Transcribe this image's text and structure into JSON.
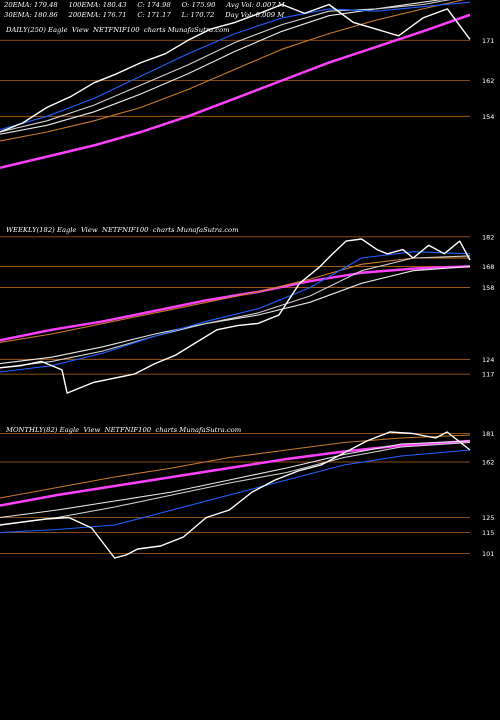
{
  "colors": {
    "background": "#000000",
    "price": "#ffffff",
    "ema20": "#1f5fff",
    "ema30": "#d0d0d0",
    "ema50": "#e8e8e8",
    "ema100": "#c87a2a",
    "ema200": "#ff40ff",
    "gridline": "#b5651d"
  },
  "header": {
    "row1": "20EMA: 179.48     100EMA: 180.43     C: 174.98     O: 175.90     Avg Vol: 0.007 M",
    "row2": "30EMA: 180.86     200EMA: 176.71     C: 171.17     L: 170.72     Day Vol: 0.009 M"
  },
  "chart_data": [
    {
      "type": "line",
      "label": "DAILY(250) Eagle  View  NETFNIF100  charts MunafaSutra.com",
      "yticks": [
        171,
        162,
        154
      ],
      "ytick_labels": [
        "171",
        "162",
        "154"
      ],
      "ylim": [
        142,
        180
      ],
      "grid": true,
      "series": [
        {
          "name": "Price",
          "color": "#ffffff",
          "x": [
            0,
            12,
            25,
            38,
            50,
            62,
            75,
            88,
            100,
            112,
            125,
            138,
            150,
            162,
            175,
            188,
            200,
            212,
            225,
            238,
            250
          ],
          "y": [
            150.5,
            152.5,
            156,
            158.5,
            161.5,
            163.5,
            166,
            168,
            171,
            173.5,
            175,
            177,
            179,
            177,
            179,
            175,
            173.5,
            172,
            176,
            178,
            171.2
          ]
        },
        {
          "name": "20EMA",
          "color": "#1f5fff",
          "x": [
            0,
            25,
            50,
            75,
            100,
            125,
            150,
            175,
            200,
            225,
            250
          ],
          "y": [
            151,
            154,
            158,
            163,
            168,
            172.5,
            176,
            178,
            177.5,
            178.5,
            179.5
          ]
        },
        {
          "name": "30EMA",
          "color": "#d0d0d0",
          "x": [
            0,
            25,
            50,
            75,
            100,
            125,
            150,
            175,
            200,
            225,
            250
          ],
          "y": [
            150.5,
            153,
            156.5,
            161,
            165.5,
            170.5,
            174.5,
            177.5,
            178,
            179,
            180.9
          ]
        },
        {
          "name": "50EMA",
          "color": "#e8e8e8",
          "x": [
            0,
            25,
            50,
            75,
            100,
            125,
            150,
            175,
            200,
            225,
            250
          ],
          "y": [
            150,
            152,
            155,
            159,
            163.5,
            168.5,
            173,
            176.5,
            178,
            179.5,
            181
          ]
        },
        {
          "name": "100EMA",
          "color": "#c87a2a",
          "x": [
            0,
            25,
            50,
            75,
            100,
            125,
            150,
            175,
            200,
            225,
            250
          ],
          "y": [
            148.5,
            150.5,
            153,
            156,
            160,
            164.5,
            169,
            172.5,
            175.5,
            178,
            180.4
          ]
        },
        {
          "name": "200EMA",
          "color": "#ff40ff",
          "x": [
            0,
            25,
            50,
            75,
            100,
            125,
            150,
            175,
            200,
            225,
            250
          ],
          "y": [
            142.5,
            145,
            147.5,
            150.5,
            154,
            158,
            162,
            166,
            169.5,
            173,
            176.7
          ]
        }
      ]
    },
    {
      "type": "line",
      "label": "WEEKLY(182) Eagle  View  NETFNIF100  charts MunafaSutra.com",
      "yticks": [
        182,
        168,
        158,
        124,
        117
      ],
      "ytick_labels": [
        "182",
        "168",
        "158",
        "124",
        "117"
      ],
      "ylim": [
        100,
        190
      ],
      "grid": true,
      "series": [
        {
          "name": "Price",
          "color": "#ffffff",
          "x": [
            0,
            8,
            16,
            24,
            26,
            30,
            36,
            44,
            52,
            60,
            68,
            76,
            84,
            92,
            100,
            108,
            116,
            124,
            128,
            134,
            140,
            146,
            150,
            156,
            160,
            166,
            172,
            178,
            182
          ],
          "y": [
            120,
            121,
            123,
            119,
            108,
            110,
            113,
            115,
            117,
            122,
            126,
            132,
            138,
            140,
            141,
            145,
            160,
            168,
            173,
            180,
            181,
            176,
            174,
            176,
            172,
            178,
            174,
            180,
            171
          ]
        },
        {
          "name": "20EMA",
          "color": "#1f5fff",
          "x": [
            0,
            20,
            40,
            60,
            80,
            100,
            120,
            140,
            160,
            182
          ],
          "y": [
            118,
            121,
            127,
            135,
            142,
            148,
            158,
            172,
            175,
            174
          ]
        },
        {
          "name": "30EMA",
          "color": "#d0d0d0",
          "x": [
            0,
            20,
            40,
            60,
            80,
            100,
            120,
            140,
            160,
            182
          ],
          "y": [
            120,
            123,
            128,
            135,
            141,
            146,
            154,
            166,
            172,
            173
          ]
        },
        {
          "name": "50EMA",
          "color": "#e8e8e8",
          "x": [
            0,
            20,
            40,
            60,
            80,
            100,
            120,
            140,
            160,
            182
          ],
          "y": [
            122,
            125,
            130,
            136,
            141,
            145,
            151,
            160,
            166,
            168
          ]
        },
        {
          "name": "100EMA",
          "color": "#c87a2a",
          "x": [
            0,
            20,
            40,
            60,
            80,
            100,
            120,
            140,
            160,
            182
          ],
          "y": [
            132,
            136,
            141,
            146,
            151,
            156,
            162,
            169,
            172,
            172
          ]
        },
        {
          "name": "200EMA",
          "color": "#ff40ff",
          "x": [
            0,
            20,
            40,
            60,
            80,
            100,
            120,
            140,
            160,
            182
          ],
          "y": [
            133,
            138,
            142,
            147,
            152,
            156,
            161,
            165,
            167,
            168
          ]
        }
      ]
    },
    {
      "type": "line",
      "label": "MONTHLY(82) Eagle  View  NETFNIF100  charts MunafaSutra.com",
      "yticks": [
        181,
        162,
        125,
        115,
        101
      ],
      "ytick_labels": [
        "181",
        "162",
        "125",
        "115",
        "101"
      ],
      "ylim": [
        70,
        190
      ],
      "grid": true,
      "series": [
        {
          "name": "Price",
          "color": "#ffffff",
          "x": [
            0,
            4,
            8,
            12,
            16,
            20,
            22,
            24,
            28,
            32,
            36,
            40,
            44,
            48,
            52,
            56,
            60,
            64,
            68,
            72,
            76,
            78,
            82
          ],
          "y": [
            120,
            122,
            124,
            125,
            118,
            98,
            100,
            104,
            106,
            112,
            125,
            130,
            142,
            150,
            156,
            160,
            168,
            176,
            182,
            181,
            178,
            182,
            170
          ]
        },
        {
          "name": "20EMA",
          "color": "#1f5fff",
          "x": [
            0,
            10,
            20,
            30,
            40,
            50,
            60,
            70,
            82
          ],
          "y": [
            115,
            117,
            120,
            130,
            140,
            150,
            160,
            166,
            170
          ]
        },
        {
          "name": "30EMA",
          "color": "#d0d0d0",
          "x": [
            0,
            10,
            20,
            30,
            40,
            50,
            60,
            70,
            82
          ],
          "y": [
            120,
            125,
            132,
            140,
            148,
            155,
            165,
            172,
            175
          ]
        },
        {
          "name": "50EMA",
          "color": "#e8e8e8",
          "x": [
            0,
            10,
            20,
            30,
            40,
            50,
            60,
            70,
            82
          ],
          "y": [
            125,
            130,
            136,
            142,
            150,
            158,
            167,
            174,
            176
          ]
        },
        {
          "name": "100EMA",
          "color": "#c87a2a",
          "x": [
            0,
            10,
            20,
            30,
            40,
            50,
            60,
            70,
            82
          ],
          "y": [
            138,
            145,
            152,
            158,
            165,
            170,
            175,
            178,
            180
          ]
        },
        {
          "name": "200EMA",
          "color": "#ff40ff",
          "x": [
            0,
            10,
            20,
            30,
            40,
            50,
            60,
            70,
            82
          ],
          "y": [
            133,
            140,
            146,
            152,
            158,
            164,
            169,
            173,
            176
          ]
        }
      ]
    }
  ]
}
